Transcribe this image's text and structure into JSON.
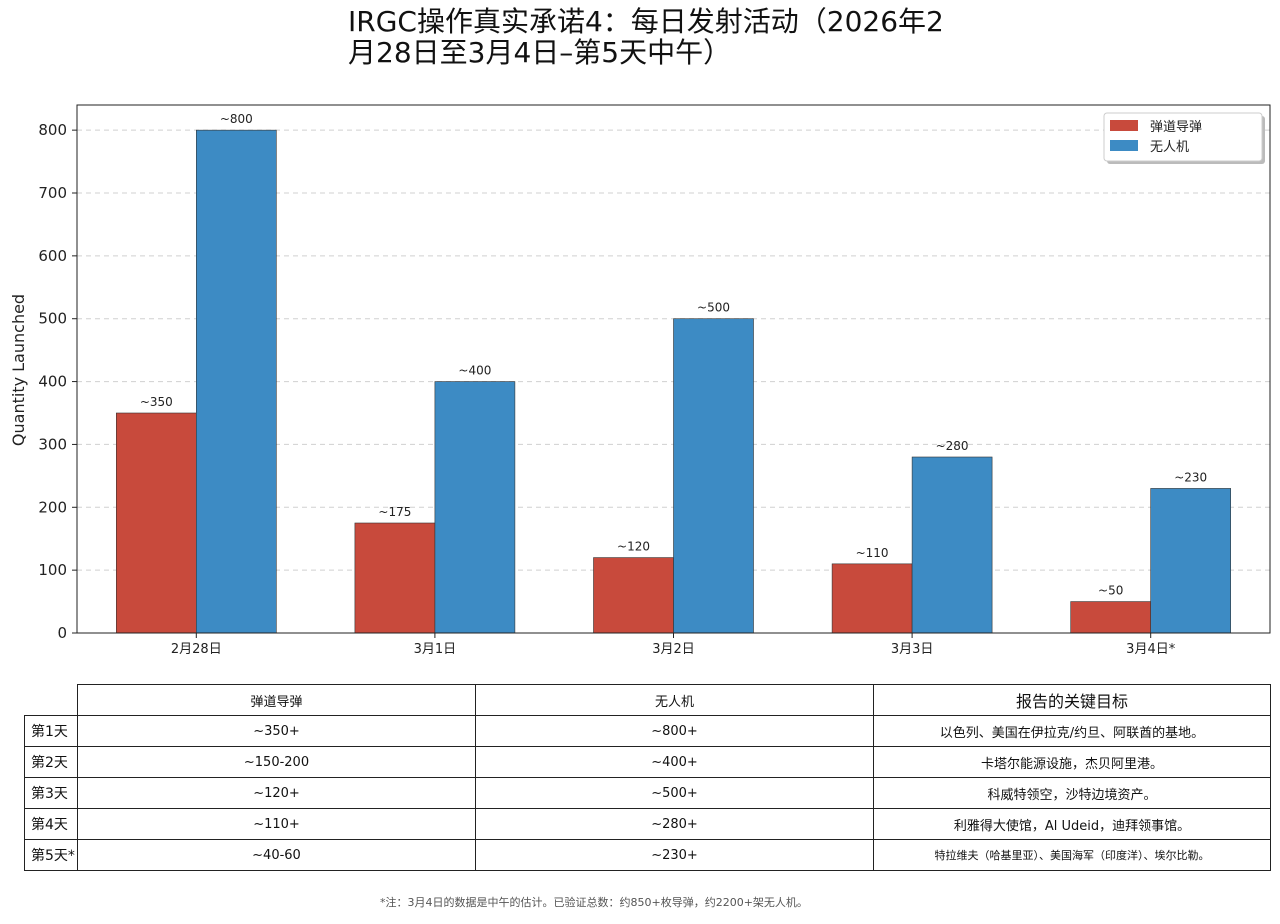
{
  "title_line1": "IRGC操作真实承诺4：每日发射活动（2026年2",
  "title_line2": "月28日至3月4日–第5天中午）",
  "chart_data": {
    "type": "bar",
    "title": "IRGC操作真实承诺4：每日发射活动（2026年2月28日至3月4日–第5天中午）",
    "xlabel": "",
    "ylabel": "Quantity Launched",
    "categories": [
      "2月28日",
      "3月1日",
      "3月2日",
      "3月3日",
      "3月4日*"
    ],
    "ylim": [
      0,
      840
    ],
    "yticks": [
      0,
      100,
      200,
      300,
      400,
      500,
      600,
      700,
      800
    ],
    "grid": true,
    "legend_position": "top-right",
    "series": [
      {
        "name": "弹道导弹",
        "color": "#c84a3c",
        "values": [
          350,
          175,
          120,
          110,
          50
        ],
        "labels": [
          "~350",
          "~175",
          "~120",
          "~110",
          "~50"
        ]
      },
      {
        "name": "无人机",
        "color": "#3d8bc4",
        "values": [
          800,
          400,
          500,
          280,
          230
        ],
        "labels": [
          "~800",
          "~400",
          "~500",
          "~280",
          "~230"
        ]
      }
    ]
  },
  "table": {
    "headers": [
      "弹道导弹",
      "无人机",
      "报告的关键目标"
    ],
    "rows": [
      {
        "day": "第1天",
        "missiles": "~350+",
        "drones": "~800+",
        "targets": "以色列、美国在伊拉克/约旦、阿联酋的基地。"
      },
      {
        "day": "第2天",
        "missiles": "~150-200",
        "drones": "~400+",
        "targets": "卡塔尔能源设施，杰贝阿里港。"
      },
      {
        "day": "第3天",
        "missiles": "~120+",
        "drones": "~500+",
        "targets": "科威特领空，沙特边境资产。"
      },
      {
        "day": "第4天",
        "missiles": "~110+",
        "drones": "~280+",
        "targets": "利雅得大使馆，Al Udeid，迪拜领事馆。"
      },
      {
        "day": "第5天*",
        "missiles": "~40-60",
        "drones": "~230+",
        "targets": "特拉维夫（哈基里亚）、美国海军（印度洋）、埃尔比勒。"
      }
    ]
  },
  "footnote": "*注：3月4日的数据是中午的估计。已验证总数：约850+枚导弹，约2200+架无人机。"
}
